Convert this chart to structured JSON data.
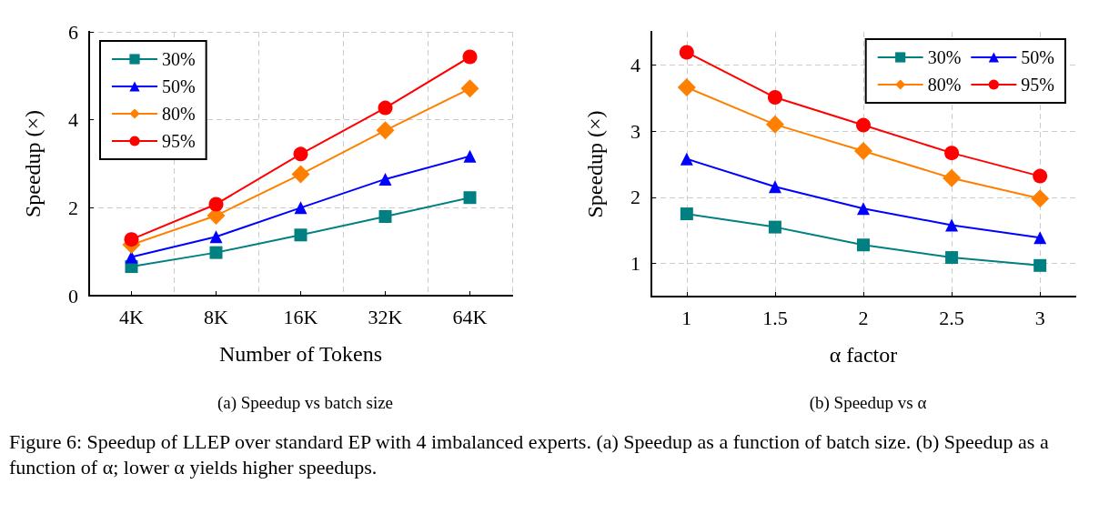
{
  "chart_data": [
    {
      "type": "line",
      "title": "(a) Speedup vs batch size",
      "xlabel": "Number of Tokens",
      "ylabel": "Speedup (×)",
      "categories": [
        "4K",
        "8K",
        "16K",
        "32K",
        "64K"
      ],
      "series": [
        {
          "name": "30%",
          "color": "#008080",
          "marker": "square",
          "values": [
            0.66,
            0.98,
            1.38,
            1.8,
            2.23
          ]
        },
        {
          "name": "50%",
          "color": "#0000ff",
          "marker": "triangle",
          "values": [
            0.88,
            1.34,
            2.0,
            2.65,
            3.17
          ]
        },
        {
          "name": "80%",
          "color": "#ff8000",
          "marker": "diamond",
          "values": [
            1.16,
            1.82,
            2.76,
            3.76,
            4.71
          ]
        },
        {
          "name": "95%",
          "color": "#ff0000",
          "marker": "circle",
          "values": [
            1.28,
            2.08,
            3.22,
            4.27,
            5.43
          ]
        }
      ],
      "ylim": [
        0,
        6
      ],
      "yticks": [
        0,
        2,
        4,
        6
      ],
      "grid": true,
      "legend": "top left",
      "line_style": "solid",
      "annotations": [
        "Figure 6: Speedup of LLEP over standard EP with 4 imbalanced experts. (a) Speedup as a function of batch size. (b) Speedup as a function of α; lower α yields higher speedups."
      ]
    },
    {
      "type": "line",
      "title": "(b) Speedup vs α",
      "xlabel": "α factor",
      "ylabel": "Speedup (×)",
      "x": [
        1,
        1.5,
        2,
        2.5,
        3
      ],
      "series": [
        {
          "name": "30%",
          "color": "#008080",
          "marker": "square",
          "values": [
            1.75,
            1.55,
            1.28,
            1.09,
            0.97
          ]
        },
        {
          "name": "50%",
          "color": "#0000ff",
          "marker": "triangle",
          "values": [
            2.58,
            2.16,
            1.83,
            1.58,
            1.39
          ]
        },
        {
          "name": "80%",
          "color": "#ff8000",
          "marker": "diamond",
          "values": [
            3.66,
            3.1,
            2.7,
            2.29,
            1.98
          ]
        },
        {
          "name": "95%",
          "color": "#ff0000",
          "marker": "circle",
          "values": [
            4.19,
            3.51,
            3.09,
            2.67,
            2.32
          ]
        }
      ],
      "xlim": [
        0.8,
        3.2
      ],
      "xticks": [
        1,
        1.5,
        2,
        2.5,
        3
      ],
      "ylim": [
        0.5,
        4.5
      ],
      "yticks": [
        1,
        2,
        3,
        4
      ],
      "grid": true,
      "legend": "top right",
      "line_style": "solid"
    }
  ]
}
